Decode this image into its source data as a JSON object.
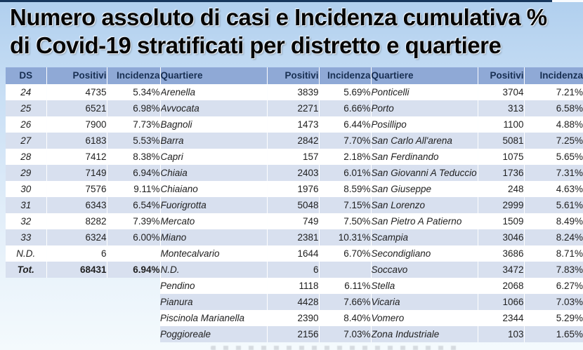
{
  "title": {
    "line1": "Numero assoluto di casi e Incidenza cumulativa %",
    "line2": "di Covid-19 stratificati per distretto e quartiere"
  },
  "colors": {
    "header_bg": "#8fa9d6",
    "band_row_bg": "#d8e0ef",
    "white_row_bg": "#ffffff",
    "header_text": "#182f52",
    "top_bar": "#17375d",
    "background_top": "#b0cfee",
    "background_bottom": "#f4fafd"
  },
  "table": {
    "headers": {
      "ds": "DS",
      "positivi": "Positivi",
      "incidenza": "Incidenza",
      "quartiere": "Quartiere"
    },
    "districts": [
      {
        "ds": "24",
        "positivi": "4735",
        "incidenza": "5.34%",
        "total": false
      },
      {
        "ds": "25",
        "positivi": "6521",
        "incidenza": "6.98%",
        "total": false
      },
      {
        "ds": "26",
        "positivi": "7900",
        "incidenza": "7.73%",
        "total": false
      },
      {
        "ds": "27",
        "positivi": "6183",
        "incidenza": "5.53%",
        "total": false
      },
      {
        "ds": "28",
        "positivi": "7412",
        "incidenza": "8.38%",
        "total": false
      },
      {
        "ds": "29",
        "positivi": "7149",
        "incidenza": "6.94%",
        "total": false
      },
      {
        "ds": "30",
        "positivi": "7576",
        "incidenza": "9.11%",
        "total": false
      },
      {
        "ds": "31",
        "positivi": "6343",
        "incidenza": "6.54%",
        "total": false
      },
      {
        "ds": "32",
        "positivi": "8282",
        "incidenza": "7.39%",
        "total": false
      },
      {
        "ds": "33",
        "positivi": "6324",
        "incidenza": "6.00%",
        "total": false
      },
      {
        "ds": "N.D.",
        "positivi": "6",
        "incidenza": "",
        "total": false
      },
      {
        "ds": "Tot.",
        "positivi": "68431",
        "incidenza": "6.94%",
        "total": true
      }
    ],
    "quartieri_a": [
      {
        "name": "Arenella",
        "positivi": "3839",
        "incidenza": "5.69%"
      },
      {
        "name": "Avvocata",
        "positivi": "2271",
        "incidenza": "6.66%"
      },
      {
        "name": "Bagnoli",
        "positivi": "1473",
        "incidenza": "6.44%"
      },
      {
        "name": "Barra",
        "positivi": "2842",
        "incidenza": "7.70%"
      },
      {
        "name": "Capri",
        "positivi": "157",
        "incidenza": "2.18%"
      },
      {
        "name": "Chiaia",
        "positivi": "2403",
        "incidenza": "6.01%"
      },
      {
        "name": "Chiaiano",
        "positivi": "1976",
        "incidenza": "8.59%"
      },
      {
        "name": "Fuorigrotta",
        "positivi": "5048",
        "incidenza": "7.15%"
      },
      {
        "name": "Mercato",
        "positivi": "749",
        "incidenza": "7.50%"
      },
      {
        "name": "Miano",
        "positivi": "2381",
        "incidenza": "10.31%"
      },
      {
        "name": "Montecalvario",
        "positivi": "1644",
        "incidenza": "6.70%"
      },
      {
        "name": "N.D.",
        "positivi": "6",
        "incidenza": ""
      },
      {
        "name": "Pendino",
        "positivi": "1118",
        "incidenza": "6.11%"
      },
      {
        "name": "Pianura",
        "positivi": "4428",
        "incidenza": "7.66%"
      },
      {
        "name": "Piscinola Marianella",
        "positivi": "2390",
        "incidenza": "8.40%"
      },
      {
        "name": "Poggioreale",
        "positivi": "2156",
        "incidenza": "7.03%"
      }
    ],
    "quartieri_b": [
      {
        "name": "Ponticelli",
        "positivi": "3704",
        "incidenza": "7.21%"
      },
      {
        "name": "Porto",
        "positivi": "313",
        "incidenza": "6.58%"
      },
      {
        "name": "Posillipo",
        "positivi": "1100",
        "incidenza": "4.88%"
      },
      {
        "name": "San Carlo All'arena",
        "positivi": "5081",
        "incidenza": "7.25%"
      },
      {
        "name": "San Ferdinando",
        "positivi": "1075",
        "incidenza": "5.65%"
      },
      {
        "name": "San Giovanni A Teduccio",
        "positivi": "1736",
        "incidenza": "7.31%"
      },
      {
        "name": "San Giuseppe",
        "positivi": "248",
        "incidenza": "4.63%"
      },
      {
        "name": "San Lorenzo",
        "positivi": "2999",
        "incidenza": "5.61%"
      },
      {
        "name": "San Pietro A Patierno",
        "positivi": "1509",
        "incidenza": "8.49%"
      },
      {
        "name": "Scampia",
        "positivi": "3046",
        "incidenza": "8.24%"
      },
      {
        "name": "Secondigliano",
        "positivi": "3686",
        "incidenza": "8.71%"
      },
      {
        "name": "Soccavo",
        "positivi": "3472",
        "incidenza": "7.83%"
      },
      {
        "name": "Stella",
        "positivi": "2068",
        "incidenza": "6.27%"
      },
      {
        "name": "Vicaria",
        "positivi": "1066",
        "incidenza": "7.03%"
      },
      {
        "name": "Vomero",
        "positivi": "2344",
        "incidenza": "5.29%"
      },
      {
        "name": "Zona Industriale",
        "positivi": "103",
        "incidenza": "1.65%"
      }
    ]
  }
}
